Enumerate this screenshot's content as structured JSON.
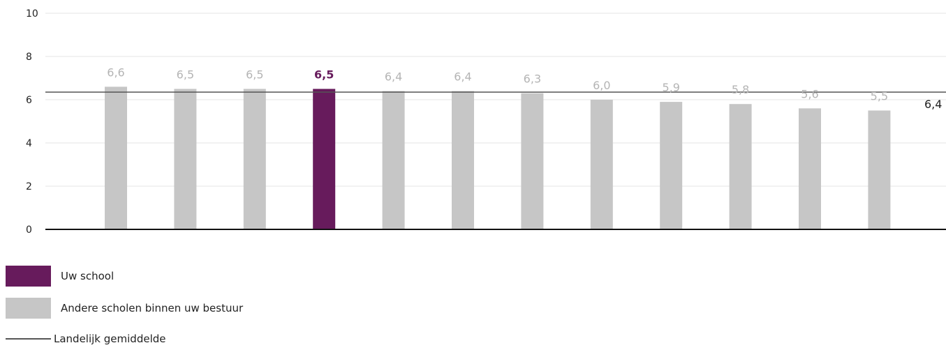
{
  "chart_data": {
    "type": "bar",
    "values": [
      6.6,
      6.5,
      6.5,
      6.5,
      6.4,
      6.4,
      6.3,
      6.0,
      5.9,
      5.8,
      5.6,
      5.5
    ],
    "value_labels": [
      "6,6",
      "6,5",
      "6,5",
      "6,5",
      "6,4",
      "6,4",
      "6,3",
      "6,0",
      "5,9",
      "5,8",
      "5,6",
      "5,5"
    ],
    "highlight_index": 3,
    "ylim": [
      0,
      10
    ],
    "yticks": [
      "0",
      "2",
      "4",
      "6",
      "8",
      "10"
    ],
    "reference_line": {
      "value": 6.35,
      "label": "6,4"
    },
    "grid": true,
    "colors": {
      "highlight": "#671b5c",
      "other": "#c6c6c6",
      "reference": "#555555",
      "axis": "#111111",
      "grid": "#e4e4e4",
      "tick_text": "#222222"
    }
  },
  "legend": {
    "items": [
      {
        "label": "Uw school",
        "color": "#671b5c"
      },
      {
        "label": "Andere scholen binnen uw bestuur",
        "color": "#c6c6c6"
      },
      {
        "label": "Landelijk gemiddelde",
        "color": "#555555"
      }
    ]
  }
}
